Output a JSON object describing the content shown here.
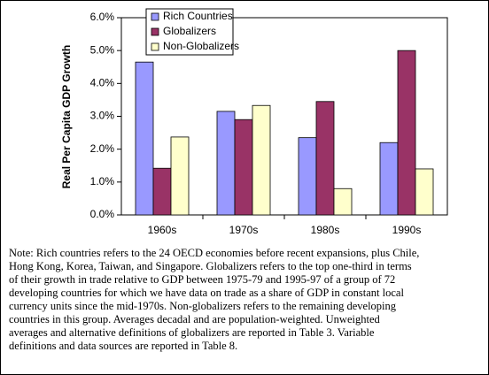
{
  "chart_data": {
    "type": "bar",
    "y_label": "Real Per Capita GDP Growth",
    "categories": [
      "1960s",
      "1970s",
      "1980s",
      "1990s"
    ],
    "series": [
      {
        "name": "Rich Countries",
        "color": "#9999ff",
        "values": [
          4.65,
          3.15,
          2.35,
          2.2
        ]
      },
      {
        "name": "Globalizers",
        "color": "#993366",
        "values": [
          1.42,
          2.9,
          3.45,
          5.0
        ]
      },
      {
        "name": "Non-Globalizers",
        "color": "#ffffcc",
        "values": [
          2.37,
          3.33,
          0.8,
          1.4
        ]
      }
    ],
    "ylim": [
      0,
      6
    ],
    "yticks": [
      {
        "value": 0,
        "label": "0.0%"
      },
      {
        "value": 1,
        "label": "1.0%"
      },
      {
        "value": 2,
        "label": "2.0%"
      },
      {
        "value": 3,
        "label": "3.0%"
      },
      {
        "value": 4,
        "label": "4.0%"
      },
      {
        "value": 5,
        "label": "5.0%"
      },
      {
        "value": 6,
        "label": "6.0%"
      }
    ],
    "legend": "top-left"
  },
  "note": [
    "Note:  Rich countries refers to the 24 OECD economies before recent expansions, plus Chile,",
    "Hong Kong, Korea, Taiwan, and Singapore.  Globalizers refers to the top one-third in terms",
    "of their growth in trade relative to GDP between 1975-79 and 1995-97 of a group of 72",
    "developing countries for which we have data on trade as a share of GDP in constant local",
    "currency units since the mid-1970s.  Non-globalizers refers to the remaining developing",
    "countries in this group.  Averages decadal and are population-weighted.  Unweighted",
    "averages and alternative definitions of globalizers are reported in Table 3.  Variable",
    "definitions and data sources are reported in Table 8."
  ]
}
